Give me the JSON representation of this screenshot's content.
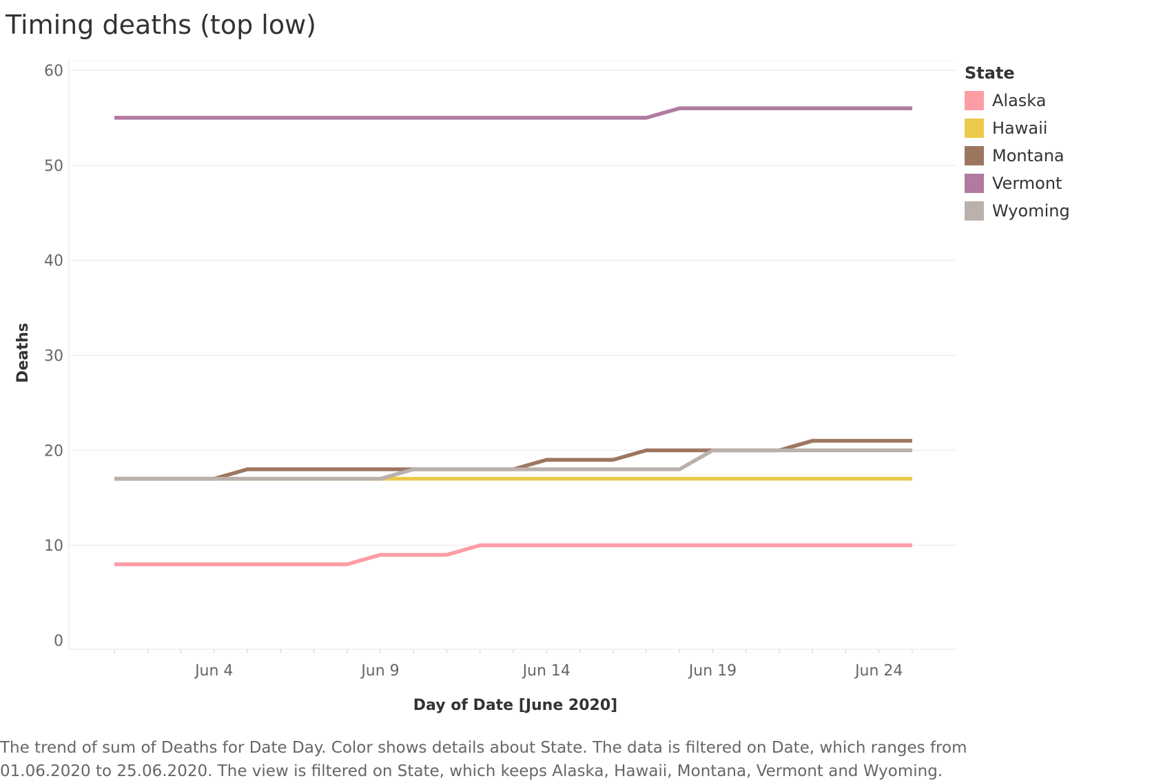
{
  "chart_data": {
    "type": "line",
    "title": "Timing deaths (top low)",
    "xlabel": "Day of Date [June 2020]",
    "ylabel": "Deaths",
    "ylim": [
      0,
      60
    ],
    "yticks": [
      0,
      10,
      20,
      30,
      40,
      50,
      60
    ],
    "xticks": [
      {
        "day": 4,
        "label": "Jun 4"
      },
      {
        "day": 9,
        "label": "Jun 9"
      },
      {
        "day": 14,
        "label": "Jun 14"
      },
      {
        "day": 19,
        "label": "Jun 19"
      },
      {
        "day": 24,
        "label": "Jun 24"
      }
    ],
    "x": [
      1,
      2,
      3,
      4,
      5,
      6,
      7,
      8,
      9,
      10,
      11,
      12,
      13,
      14,
      15,
      16,
      17,
      18,
      19,
      20,
      21,
      22,
      23,
      24,
      25
    ],
    "legend_title": "State",
    "legend_position": "right",
    "grid": true,
    "series": [
      {
        "name": "Alaska",
        "color": "#fc9da5",
        "values": [
          8,
          8,
          8,
          8,
          8,
          8,
          8,
          8,
          9,
          9,
          9,
          10,
          10,
          10,
          10,
          10,
          10,
          10,
          10,
          10,
          10,
          10,
          10,
          10,
          10
        ]
      },
      {
        "name": "Hawaii",
        "color": "#edc94b",
        "values": [
          17,
          17,
          17,
          17,
          17,
          17,
          17,
          17,
          17,
          17,
          17,
          17,
          17,
          17,
          17,
          17,
          17,
          17,
          17,
          17,
          17,
          17,
          17,
          17,
          17
        ]
      },
      {
        "name": "Montana",
        "color": "#9d7660",
        "values": [
          17,
          17,
          17,
          17,
          18,
          18,
          18,
          18,
          18,
          18,
          18,
          18,
          18,
          19,
          19,
          19,
          20,
          20,
          20,
          20,
          20,
          21,
          21,
          21,
          21
        ]
      },
      {
        "name": "Vermont",
        "color": "#b07aa1",
        "values": [
          55,
          55,
          55,
          55,
          55,
          55,
          55,
          55,
          55,
          55,
          55,
          55,
          55,
          55,
          55,
          55,
          55,
          56,
          56,
          56,
          56,
          56,
          56,
          56,
          56
        ]
      },
      {
        "name": "Wyoming",
        "color": "#bab0ac",
        "values": [
          17,
          17,
          17,
          17,
          17,
          17,
          17,
          17,
          17,
          18,
          18,
          18,
          18,
          18,
          18,
          18,
          18,
          18,
          20,
          20,
          20,
          20,
          20,
          20,
          20
        ]
      }
    ],
    "caption": "The trend of sum of Deaths for Date Day.  Color shows details about State. The data is filtered on Date, which ranges from 01.06.2020 to 25.06.2020. The view is filtered on State, which keeps Alaska, Hawaii, Montana, Vermont and Wyoming."
  }
}
